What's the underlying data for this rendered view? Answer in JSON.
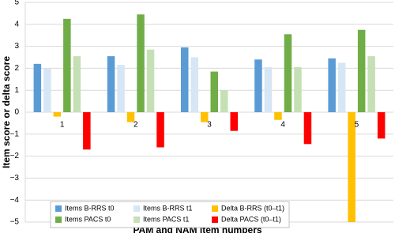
{
  "chart_data": {
    "type": "bar",
    "xlabel": "PAM and NAM item numbers",
    "ylabel": "Item score or delta score",
    "categories": [
      "1",
      "2",
      "3",
      "4",
      "5"
    ],
    "series": [
      {
        "name": "Items B-RRS t0",
        "color": "#5b9bd5",
        "values": [
          2.2,
          2.55,
          2.95,
          2.4,
          2.45
        ]
      },
      {
        "name": "Items B-RRS t1",
        "color": "#d6e6f5",
        "values": [
          2.0,
          2.15,
          2.5,
          2.05,
          2.25
        ]
      },
      {
        "name": "Delta B-RRS (t0–t1)",
        "color": "#ffc000",
        "values": [
          -0.2,
          -0.45,
          -0.45,
          -0.35,
          -5.0
        ]
      },
      {
        "name": "Items PACS t0",
        "color": "#70ad47",
        "values": [
          4.25,
          4.45,
          1.85,
          3.55,
          3.75
        ]
      },
      {
        "name": "Items PACS t1",
        "color": "#c5e0b4",
        "values": [
          2.55,
          2.85,
          1.0,
          2.05,
          2.55
        ]
      },
      {
        "name": "Delta PACS (t0–t1)",
        "color": "#ff0000",
        "values": [
          -1.7,
          -1.6,
          -0.85,
          -1.45,
          -1.2
        ]
      }
    ],
    "ylim": [
      -5,
      5
    ],
    "yticks": [
      {
        "value": -5,
        "label": "−5"
      },
      {
        "value": -4,
        "label": "−4"
      },
      {
        "value": -3,
        "label": "−3"
      },
      {
        "value": -2,
        "label": "−2"
      },
      {
        "value": -1,
        "label": "−1"
      },
      0,
      1,
      2,
      3,
      4,
      5
    ],
    "grid": true,
    "legend": "bottom-left"
  }
}
